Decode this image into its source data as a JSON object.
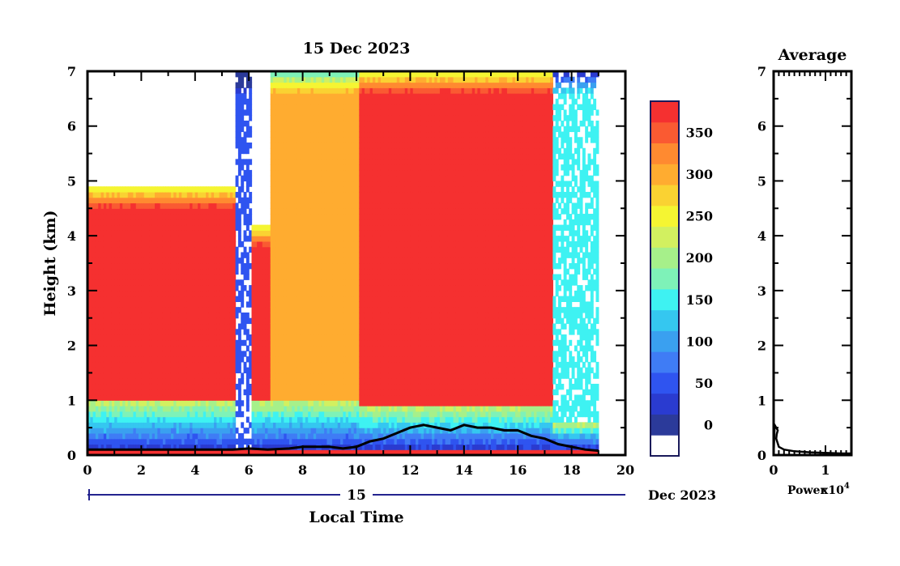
{
  "chart_data": [
    {
      "type": "heatmap",
      "title": "15 Dec 2023",
      "xlabel": "Local Time",
      "ylabel": "Height (km)",
      "xlim": [
        0,
        20
      ],
      "ylim": [
        0,
        7
      ],
      "x_ticks": [
        "0",
        "2",
        "4",
        "6",
        "8",
        "10",
        "12",
        "14",
        "16",
        "18",
        "20"
      ],
      "y_ticks": [
        "0",
        "1",
        "2",
        "3",
        "4",
        "5",
        "6",
        "7"
      ],
      "date_axis": {
        "day_label": "15",
        "month_label": "Dec 2023"
      },
      "colorbar": {
        "tick_labels": [
          "0",
          "50",
          "100",
          "150",
          "200",
          "250",
          "300",
          "350"
        ],
        "levels": [
          0,
          25,
          50,
          75,
          100,
          125,
          150,
          175,
          200,
          225,
          250,
          275,
          300,
          325,
          350,
          375
        ],
        "colors": [
          "#2b3a9a",
          "#2a3bd0",
          "#2f54f0",
          "#3f7cf5",
          "#3aa0f0",
          "#35c7f0",
          "#3ef2f2",
          "#7ef2b8",
          "#a6f08a",
          "#d2f060",
          "#f5f532",
          "#fad232",
          "#ffac30",
          "#ff8a30",
          "#fa5a32",
          "#f53030"
        ]
      },
      "regions": [
        {
          "t_start": 0.0,
          "t_end": 5.4,
          "cloud_top_km": 4.9,
          "cloud_base_km": 1.0,
          "level": 375
        },
        {
          "t_start": 5.4,
          "t_end": 6.0,
          "cloud_top_km": 7.0,
          "cloud_base_km": 0.1,
          "level": 50
        },
        {
          "t_start": 6.0,
          "t_end": 6.7,
          "cloud_top_km": 4.2,
          "cloud_base_km": 1.0,
          "level": 375
        },
        {
          "t_start": 6.7,
          "t_end": 10.0,
          "cloud_top_km": 7.0,
          "cloud_base_km": 1.0,
          "level": 300
        },
        {
          "t_start": 10.0,
          "t_end": 17.2,
          "cloud_top_km": 7.0,
          "cloud_base_km": 0.9,
          "level": 375
        },
        {
          "t_start": 17.2,
          "t_end": 19.0,
          "cloud_top_km": 7.0,
          "cloud_base_km": 0.6,
          "level": 150
        }
      ],
      "boundary_layer_height": {
        "t": [
          0.0,
          1.0,
          2.0,
          3.0,
          4.0,
          5.0,
          5.4,
          6.0,
          6.7,
          7.5,
          8.0,
          9.0,
          9.5,
          10.0,
          10.5,
          11.0,
          11.5,
          12.0,
          12.5,
          13.0,
          13.5,
          14.0,
          14.5,
          15.0,
          15.5,
          16.0,
          16.5,
          17.0,
          17.5,
          18.0,
          18.5,
          19.0
        ],
        "km": [
          0.1,
          0.1,
          0.1,
          0.1,
          0.1,
          0.1,
          0.1,
          0.12,
          0.1,
          0.12,
          0.15,
          0.15,
          0.12,
          0.15,
          0.25,
          0.3,
          0.4,
          0.5,
          0.55,
          0.5,
          0.45,
          0.55,
          0.5,
          0.5,
          0.45,
          0.45,
          0.35,
          0.3,
          0.2,
          0.15,
          0.1,
          0.08
        ]
      }
    },
    {
      "type": "line",
      "title": "Average",
      "xlabel": "Power",
      "x_scale_label": "x10",
      "x_scale_exponent": "4",
      "xlim": [
        0,
        1.5
      ],
      "ylim": [
        0,
        7
      ],
      "x_ticks": [
        "0",
        "1"
      ],
      "y_ticks": [
        "0",
        "1",
        "2",
        "3",
        "4",
        "5",
        "6",
        "7"
      ],
      "series": [
        {
          "x": [
            0.0,
            0.02,
            0.05,
            0.08,
            0.06,
            0.05,
            0.1,
            0.2,
            0.4,
            0.7,
            1.0,
            1.3,
            1.5
          ],
          "y": [
            0.0,
            0.55,
            0.5,
            0.45,
            0.38,
            0.3,
            0.15,
            0.1,
            0.07,
            0.05,
            0.04,
            0.03,
            0.03
          ]
        }
      ]
    }
  ]
}
